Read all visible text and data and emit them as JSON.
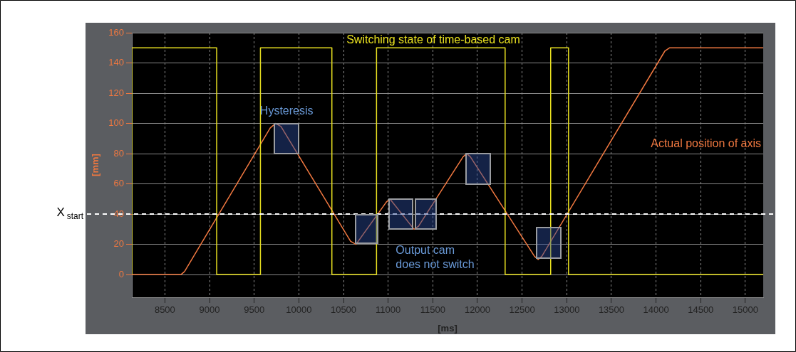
{
  "chart_data": {
    "type": "line",
    "xlabel": "[ms]",
    "ylabel": "[mm]",
    "xlim": [
      8130,
      15200
    ],
    "xticks": [
      8500,
      9000,
      9500,
      10000,
      10500,
      11000,
      11500,
      12000,
      12500,
      13000,
      13500,
      14000,
      14500,
      15000
    ],
    "ylim": [
      -15,
      160
    ],
    "yticks": [
      0,
      20,
      40,
      60,
      80,
      100,
      120,
      140,
      160
    ],
    "grid": true,
    "legend": false,
    "marker": "none",
    "series": [
      {
        "name": "Switching state of time-based cam",
        "type": "step",
        "color": "#e8e020",
        "x": [
          8130,
          9080,
          9570,
          10370,
          10870,
          12310,
          12820,
          13020,
          13510,
          15200
        ],
        "values": [
          0,
          150,
          0,
          150,
          0,
          150,
          0,
          150,
          0,
          0
        ]
      },
      {
        "name": "Actual position of axis",
        "type": "line",
        "color": "#f07840",
        "x": [
          8130,
          8680,
          8720,
          9680,
          9740,
          9800,
          10580,
          10640,
          10980,
          11020,
          11290,
          11340,
          11840,
          11880,
          11920,
          12640,
          12680,
          12720,
          14100,
          14150,
          15200
        ],
        "values": [
          0,
          0,
          2,
          97,
          100,
          98,
          22,
          20,
          48,
          50,
          30,
          32,
          78,
          80,
          78,
          12,
          10,
          12,
          148,
          150,
          150
        ]
      }
    ],
    "ref_lines": [
      {
        "axis": "y",
        "value": 40,
        "label": "X$_{start}$",
        "color": "#ffffff",
        "line_style": "dashed"
      }
    ],
    "annotations": [
      "Hysteresis",
      "Output cam does not switch"
    ]
  }
}
